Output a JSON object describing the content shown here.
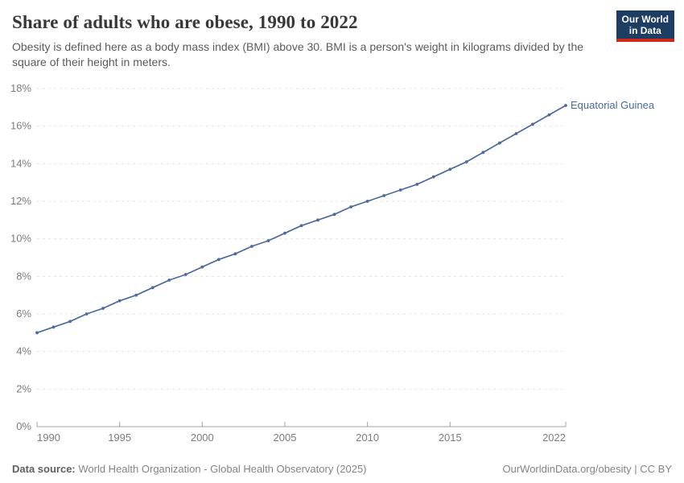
{
  "header": {
    "title": "Share of adults who are obese, 1990 to 2022",
    "subtitle": "Obesity is defined here as a body mass index (BMI) above 30. BMI is a person's weight in kilograms divided by the square of their height in meters.",
    "logo": {
      "line1": "Our World",
      "line2": "in Data"
    }
  },
  "chart_data": {
    "type": "line",
    "title": "Share of adults who are obese, 1990 to 2022",
    "xlabel": "",
    "ylabel": "",
    "xlim": [
      1990,
      2022
    ],
    "ylim": [
      0,
      18
    ],
    "x_ticks": [
      1990,
      1995,
      2000,
      2005,
      2010,
      2015,
      2022
    ],
    "y_ticks": [
      0,
      2,
      4,
      6,
      8,
      10,
      12,
      14,
      16,
      18
    ],
    "y_tick_suffix": "%",
    "grid": "horizontal-dashed",
    "legend_position": "end-of-line-label",
    "series": [
      {
        "name": "Equatorial Guinea",
        "color": "#4C6A9C",
        "x": [
          1990,
          1991,
          1992,
          1993,
          1994,
          1995,
          1996,
          1997,
          1998,
          1999,
          2000,
          2001,
          2002,
          2003,
          2004,
          2005,
          2006,
          2007,
          2008,
          2009,
          2010,
          2011,
          2012,
          2013,
          2014,
          2015,
          2016,
          2017,
          2018,
          2019,
          2020,
          2021,
          2022
        ],
        "values": [
          5.0,
          5.3,
          5.6,
          6.0,
          6.3,
          6.7,
          7.0,
          7.4,
          7.8,
          8.1,
          8.5,
          8.9,
          9.2,
          9.6,
          9.9,
          10.3,
          10.7,
          11.0,
          11.3,
          11.7,
          12.0,
          12.3,
          12.6,
          12.9,
          13.3,
          13.7,
          14.1,
          14.6,
          15.1,
          15.6,
          16.1,
          16.6,
          17.1
        ]
      }
    ],
    "colors": {
      "grid": "#e3e3e3",
      "axis": "#a3a3a3",
      "tick_label": "#7d7d7d",
      "accent": "#4C6A9C"
    }
  },
  "footer": {
    "datasource_label": "Data source:",
    "datasource_value": " World Health Organization - Global Health Observatory (2025)",
    "rights": "OurWorldinData.org/obesity | CC BY"
  }
}
